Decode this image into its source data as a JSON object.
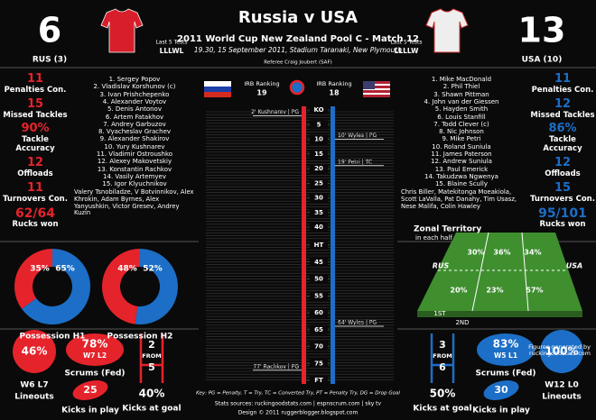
{
  "header": {
    "title": "Russia v USA",
    "subtitle": "2011 World Cup New Zealand Pool C - Match 12",
    "details": "19.30, 15 September 2011, Stadium Taranaki, New Plymouth",
    "referee": "Referee Craig Joubert (SAF)"
  },
  "teams": [
    {
      "score": "6",
      "name": "RUS (3)",
      "color": "#e5232b",
      "last5_label": "Last 5 Tests",
      "last5": "LLLWL",
      "irb_label": "IRB Ranking",
      "irb": "19",
      "stats": [
        {
          "value": "11",
          "label": "Penalties Con."
        },
        {
          "value": "15",
          "label": "Missed Tackles"
        },
        {
          "value": "90%",
          "label": "Tackle Accuracy"
        },
        {
          "value": "12",
          "label": "Offloads"
        },
        {
          "value": "11",
          "label": "Turnovers Con."
        },
        {
          "value": "62/64",
          "label": "Rucks won"
        }
      ],
      "lineup": [
        "1. Sergey Popov",
        "2. Vladislav Korshunov (c)",
        "3. Ivan Prishchepenko",
        "4. Alexander Voytov",
        "5. Denis Antonov",
        "6. Artem Fatakhov",
        "7. Andrey Garbuzov",
        "8. Vyacheslav Grachev",
        "9. Alexander Shakirov",
        "10. Yury Kushnarev",
        "11. Vladimir Ostroushko",
        "12. Alexey Makovetskiy",
        "13. Konstantin Rachkov",
        "14. Vasily Artemyev",
        "15. Igor Klyuchnikov"
      ],
      "subs": "Valery Tsnobiladze, V Botvinnikov, Alex Khrokin, Adam Byrnes, Alex Yanyushkin, Victor Gresev, Andrey Kuzin",
      "events": [
        {
          "minute": 2,
          "label": "2' Kushnarev | PG"
        },
        {
          "minute": 77,
          "label": "77' Rachkov | PG"
        }
      ],
      "lineouts": {
        "pct": "46%",
        "record": "W6 L7",
        "label": "Lineouts"
      },
      "scrums": {
        "pct": "78%",
        "record": "W7 L2",
        "label": "Scrums (Fed)"
      },
      "kicks_in_play": {
        "value": "25",
        "label": "Kicks in play"
      },
      "kicks_at_goal": {
        "made": "2",
        "from": "FROM",
        "attempts": "5",
        "pct": "40%",
        "label": "Kicks at goal"
      }
    },
    {
      "score": "13",
      "name": "USA (10)",
      "color": "#1c6ec6",
      "last5_label": "Last 5 Tests",
      "last5": "LLLLW",
      "irb_label": "IRB Ranking",
      "irb": "18",
      "stats": [
        {
          "value": "11",
          "label": "Penalties Con."
        },
        {
          "value": "12",
          "label": "Missed Tackles"
        },
        {
          "value": "86%",
          "label": "Tackle Accuracy"
        },
        {
          "value": "12",
          "label": "Offloads"
        },
        {
          "value": "15",
          "label": "Turnovers Con."
        },
        {
          "value": "95/101",
          "label": "Rucks won"
        }
      ],
      "lineup": [
        "1. Mike MacDonald",
        "2. Phil Thiel",
        "3. Shawn Pittman",
        "4. John van der Giessen",
        "5. Hayden Smith",
        "6. Louis Stanfill",
        "7. Todd Clever (c)",
        "8. Nic Johnson",
        "9. Mike Petri",
        "10. Roland Suniula",
        "11. James Paterson",
        "12. Andrew Suniula",
        "13. Paul Emerick",
        "14. Takudzwa Ngwenya",
        "15. Blaine Scully"
      ],
      "subs": "Chris Biller, Matekitonga Moeakiola, Scott LaValla, Pat Danahy, Tim Usasz, Nese Malifa, Colin Hawley",
      "events": [
        {
          "minute": 10,
          "label": "10' Wyles | PG"
        },
        {
          "minute": 19,
          "label": "19' Petri | TC"
        },
        {
          "minute": 64,
          "label": "64' Wyles | PG"
        }
      ],
      "lineouts": {
        "pct": "100%",
        "record": "W12 L0",
        "label": "Lineouts"
      },
      "scrums": {
        "pct": "83%",
        "record": "W5 L1",
        "label": "Scrums (Fed)"
      },
      "kicks_in_play": {
        "value": "30",
        "label": "Kicks in play"
      },
      "kicks_at_goal": {
        "made": "3",
        "from": "FROM",
        "attempts": "6",
        "pct": "50%",
        "label": "Kicks at goal"
      }
    }
  ],
  "timeline": {
    "first_half": {
      "lim": [
        0,
        40
      ],
      "ticks": [
        {
          "value": 0,
          "label": "KO"
        },
        5,
        10,
        15,
        20,
        25,
        30,
        35,
        40
      ]
    },
    "second_half": {
      "lim": [
        40,
        80
      ],
      "ticks": [
        {
          "value": 40,
          "label": "HT"
        },
        45,
        50,
        55,
        60,
        65,
        70,
        75,
        {
          "value": 80,
          "label": "FT"
        }
      ]
    }
  },
  "possession": [
    {
      "label": "Possession H1",
      "values": [
        35,
        65
      ],
      "value_labels": [
        "35%",
        "65%"
      ]
    },
    {
      "label": "Possession H2",
      "values": [
        48,
        52
      ],
      "value_labels": [
        "48%",
        "52%"
      ]
    }
  ],
  "territory": {
    "title": "Zonal Territory",
    "subtitle": "in each half",
    "teams": [
      "RUS",
      "USA"
    ],
    "halves": [
      {
        "label": "1ST",
        "zones": [
          "30%",
          "36%",
          "34%"
        ]
      },
      {
        "label": "2ND",
        "zones": [
          "20%",
          "23%",
          "57%"
        ]
      }
    ],
    "credit": "Figures generated by ruckingoodstats.com"
  },
  "footer": {
    "key": "Key: PG = Penalty, T = Try, TC = Converted Try, PT = Penalty Try, DG = Drop Goal",
    "sources": "Stats sources: ruckingoodstats.com | espnscrum.com | sky tv",
    "design": "Design © 2011 ruggerblogger.blogspot.com"
  }
}
